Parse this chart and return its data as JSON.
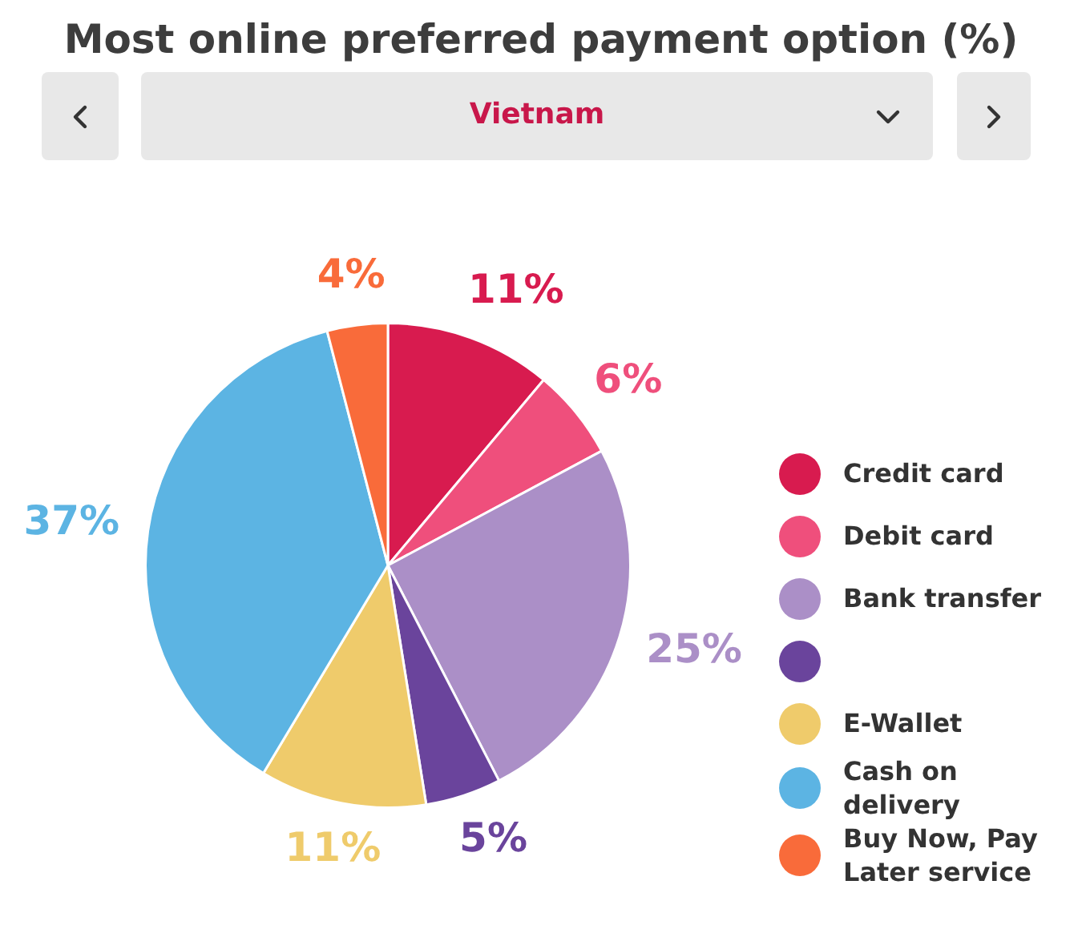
{
  "chart_data": {
    "type": "pie",
    "title": "Most online preferred payment option (%)",
    "subtitle": "Vietnam",
    "categories": [
      "Credit card",
      "Debit card",
      "Bank transfer",
      null,
      "E-Wallet",
      "Cash on delivery",
      "Buy Now, Pay Later service"
    ],
    "values": [
      11,
      6,
      25,
      5,
      11,
      37,
      4
    ],
    "colors": [
      "#d81b4f",
      "#ef4f7c",
      "#ab8fc7",
      "#6a449c",
      "#efcb6b",
      "#5cb4e3",
      "#f96b3a"
    ],
    "value_labels": [
      "11%",
      "6%",
      "25%",
      "5%",
      "11%",
      "37%",
      "4%"
    ],
    "legend": "right"
  }
}
